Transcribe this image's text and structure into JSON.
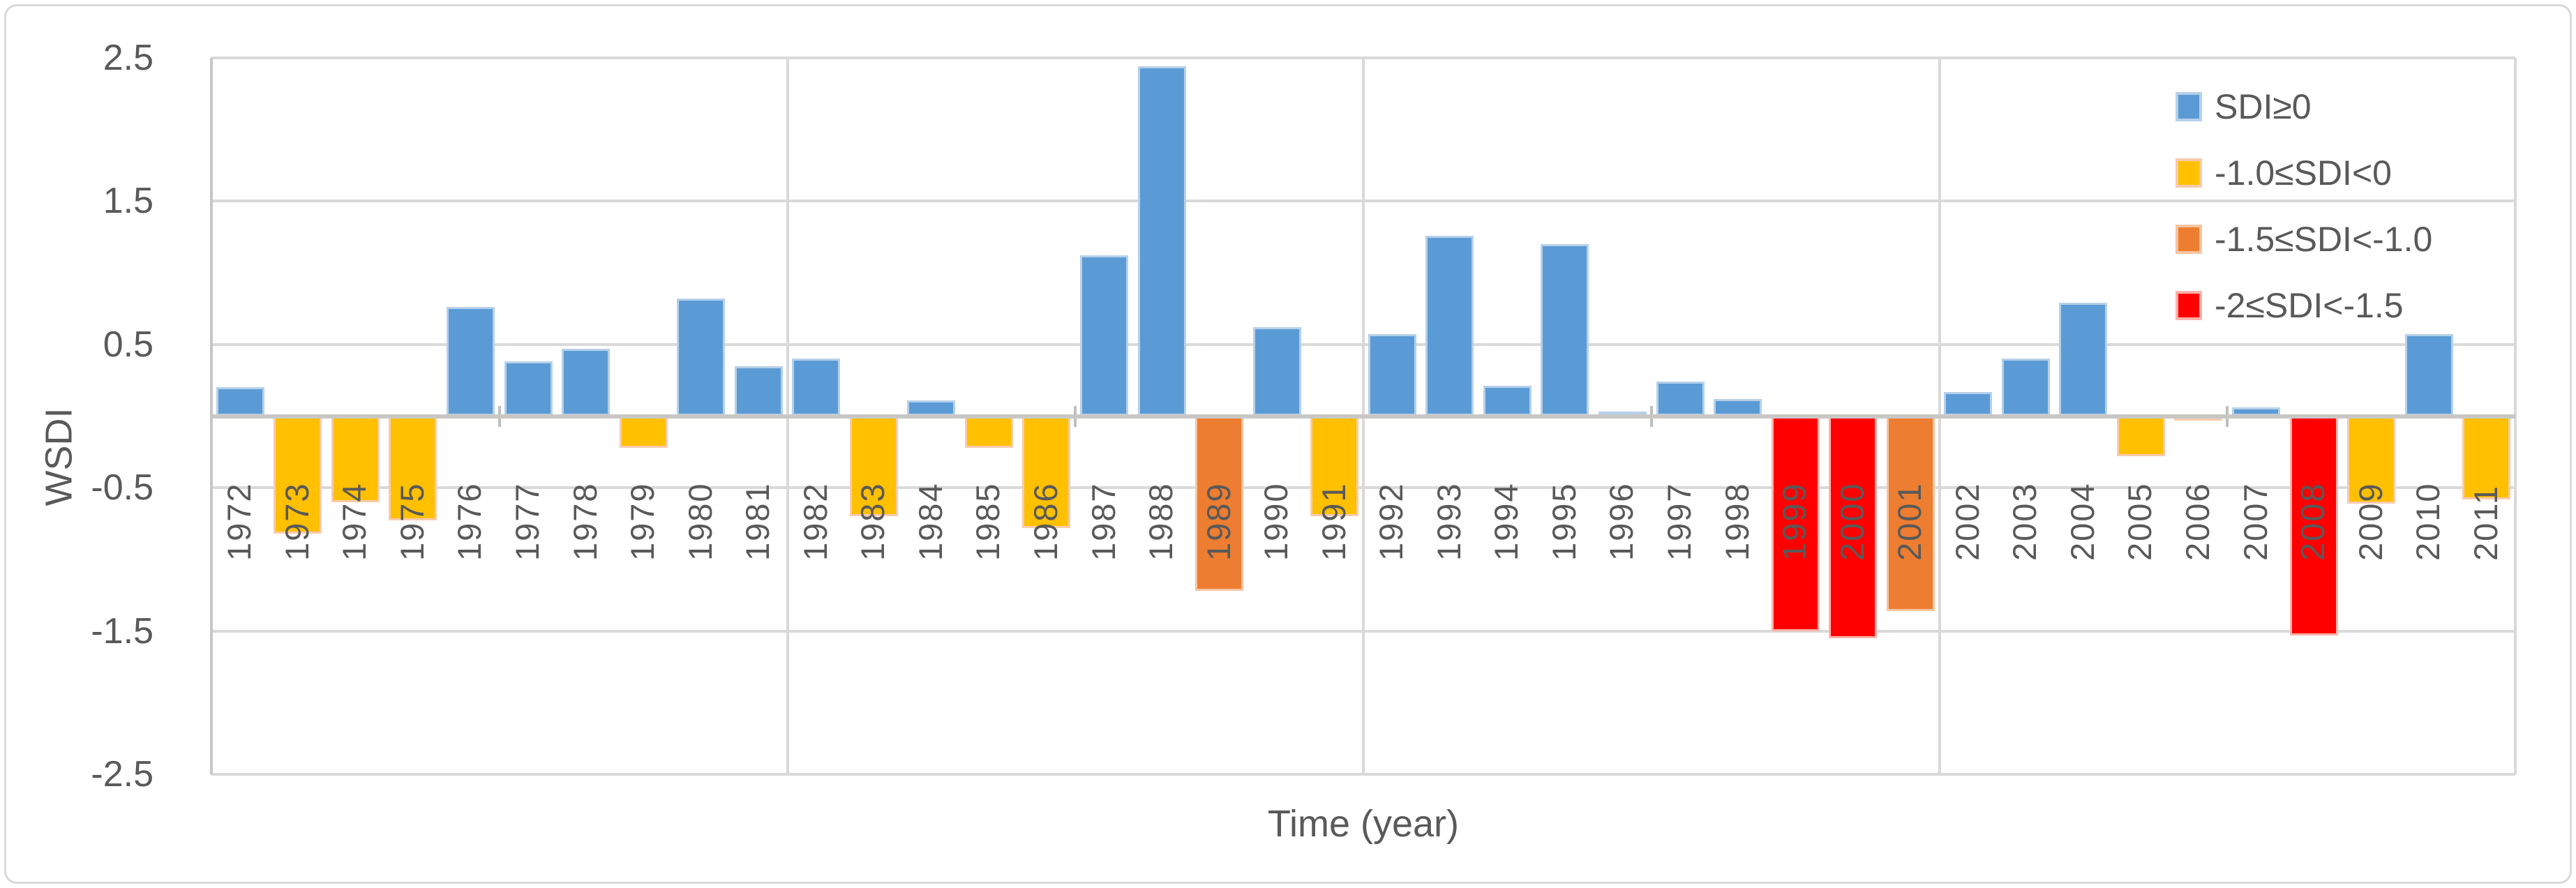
{
  "figure": {
    "background": "#ffffff",
    "border_color": "#d9d9d9"
  },
  "chart_data": {
    "type": "bar",
    "title": "",
    "xlabel": "Time (year)",
    "ylabel": "WSDI",
    "ylim": [
      -2.5,
      2.5
    ],
    "ytick_values": [
      2.5,
      1.5,
      0.5,
      -0.5,
      -1.5,
      -2.5
    ],
    "ytick_labels": [
      "2.5",
      "1.5",
      "0.5",
      "-0.5",
      "-1.5",
      "-2.5"
    ],
    "grid": "horizontal major on; vertical gridline every 10 years; minor axis tick every 5 years",
    "legend_position": "top-right inside plot",
    "categories": [
      "1972",
      "1973",
      "1974",
      "1975",
      "1976",
      "1977",
      "1978",
      "1979",
      "1980",
      "1981",
      "1982",
      "1983",
      "1984",
      "1985",
      "1986",
      "1987",
      "1988",
      "1989",
      "1990",
      "1991",
      "1992",
      "1993",
      "1994",
      "1995",
      "1996",
      "1997",
      "1998",
      "1999",
      "2000",
      "2001",
      "2002",
      "2003",
      "2004",
      "2005",
      "2006",
      "2007",
      "2008",
      "2009",
      "2010",
      "2011"
    ],
    "values": [
      0.2,
      -0.82,
      -0.6,
      -0.73,
      0.76,
      0.38,
      0.47,
      -0.22,
      0.82,
      0.35,
      0.4,
      -0.7,
      0.11,
      -0.22,
      -0.78,
      1.12,
      2.44,
      -1.22,
      0.62,
      -0.7,
      0.57,
      1.26,
      0.21,
      1.2,
      0.03,
      0.24,
      0.12,
      -1.5,
      -1.55,
      -1.36,
      0.17,
      0.4,
      0.79,
      -0.28,
      -0.02,
      0.06,
      -1.53,
      -0.61,
      0.57,
      -0.58
    ],
    "classes": [
      "blue",
      "yellow",
      "yellow",
      "yellow",
      "blue",
      "blue",
      "blue",
      "yellow",
      "blue",
      "blue",
      "blue",
      "yellow",
      "blue",
      "yellow",
      "yellow",
      "blue",
      "blue",
      "orange",
      "blue",
      "yellow",
      "blue",
      "blue",
      "blue",
      "blue",
      "blue",
      "blue",
      "blue",
      "red",
      "red",
      "orange",
      "blue",
      "blue",
      "blue",
      "yellow",
      "yellow",
      "blue",
      "red",
      "yellow",
      "blue",
      "yellow"
    ],
    "legend": [
      {
        "key": "blue",
        "label": "SDI≥0",
        "color": "#5b9bd5",
        "border": "#b6d0ea"
      },
      {
        "key": "yellow",
        "label": "-1.0≤SDI<0",
        "color": "#ffc000",
        "border": "#f8cbad"
      },
      {
        "key": "orange",
        "label": "-1.5≤SDI<-1.0",
        "color": "#ed7d31",
        "border": "#f6c5a0"
      },
      {
        "key": "red",
        "label": "-2≤SDI<-1.5",
        "color": "#ff0000",
        "border": "#ffb3ab"
      }
    ]
  },
  "colors": {
    "gridline": "#d9d9d9",
    "zero_axis": "#c9c7c5",
    "tick_label": "#595959",
    "axis_title": "#595959"
  }
}
